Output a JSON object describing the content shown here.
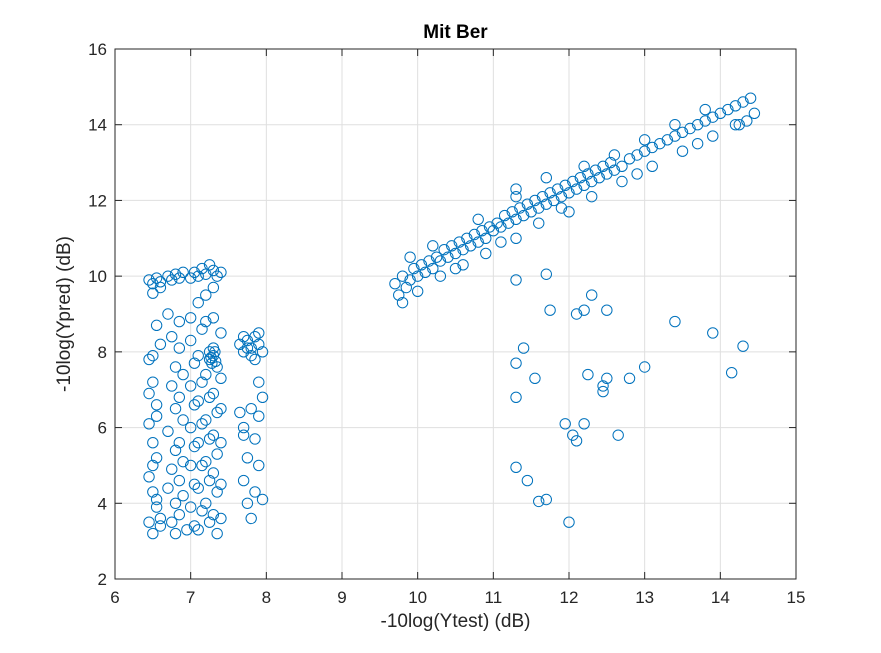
{
  "chart_data": {
    "type": "scatter",
    "title": "Mit Ber",
    "xlabel": "-10log(Ytest) (dB)",
    "ylabel": "-10log(Ypred) (dB)",
    "xlim": [
      6,
      15
    ],
    "ylim": [
      2,
      16
    ],
    "xticks": [
      6,
      7,
      8,
      9,
      10,
      11,
      12,
      13,
      14,
      15
    ],
    "yticks": [
      2,
      4,
      6,
      8,
      10,
      12,
      14,
      16
    ],
    "grid": true,
    "legend": "none",
    "marker": "circle",
    "color": "#0072bd",
    "series": [
      {
        "points": [
          [
            6.45,
            9.9
          ],
          [
            6.5,
            9.8
          ],
          [
            6.55,
            9.95
          ],
          [
            6.6,
            9.85
          ],
          [
            6.7,
            10.0
          ],
          [
            6.75,
            9.9
          ],
          [
            6.8,
            10.05
          ],
          [
            6.85,
            9.95
          ],
          [
            6.9,
            10.1
          ],
          [
            7.0,
            9.95
          ],
          [
            7.05,
            10.1
          ],
          [
            7.1,
            10.0
          ],
          [
            7.15,
            10.2
          ],
          [
            7.2,
            10.05
          ],
          [
            7.25,
            10.3
          ],
          [
            7.3,
            10.15
          ],
          [
            7.35,
            10.0
          ],
          [
            7.4,
            10.1
          ],
          [
            6.5,
            9.55
          ],
          [
            6.6,
            9.7
          ],
          [
            6.45,
            7.8
          ],
          [
            6.5,
            7.2
          ],
          [
            6.55,
            6.6
          ],
          [
            6.45,
            6.1
          ],
          [
            6.5,
            5.6
          ],
          [
            6.55,
            5.2
          ],
          [
            6.45,
            4.7
          ],
          [
            6.5,
            4.3
          ],
          [
            6.55,
            3.9
          ],
          [
            6.45,
            3.5
          ],
          [
            6.5,
            3.2
          ],
          [
            6.6,
            3.4
          ],
          [
            6.55,
            8.7
          ],
          [
            6.6,
            8.2
          ],
          [
            6.5,
            7.9
          ],
          [
            6.45,
            6.9
          ],
          [
            6.55,
            6.3
          ],
          [
            6.5,
            5.0
          ],
          [
            6.55,
            4.1
          ],
          [
            6.6,
            3.6
          ],
          [
            6.7,
            9.0
          ],
          [
            6.75,
            8.4
          ],
          [
            6.8,
            7.6
          ],
          [
            6.75,
            7.1
          ],
          [
            6.8,
            6.5
          ],
          [
            6.7,
            5.9
          ],
          [
            6.8,
            5.4
          ],
          [
            6.75,
            4.9
          ],
          [
            6.7,
            4.4
          ],
          [
            6.8,
            4.0
          ],
          [
            6.75,
            3.5
          ],
          [
            6.8,
            3.2
          ],
          [
            6.85,
            8.8
          ],
          [
            6.85,
            8.1
          ],
          [
            6.9,
            7.4
          ],
          [
            6.85,
            6.8
          ],
          [
            6.9,
            6.2
          ],
          [
            6.85,
            5.6
          ],
          [
            6.9,
            5.1
          ],
          [
            6.85,
            4.6
          ],
          [
            6.9,
            4.2
          ],
          [
            6.85,
            3.7
          ],
          [
            6.95,
            3.3
          ],
          [
            7.0,
            8.9
          ],
          [
            7.0,
            8.3
          ],
          [
            7.05,
            7.7
          ],
          [
            7.0,
            7.1
          ],
          [
            7.05,
            6.6
          ],
          [
            7.0,
            6.0
          ],
          [
            7.05,
            5.5
          ],
          [
            7.0,
            5.0
          ],
          [
            7.05,
            4.5
          ],
          [
            7.0,
            3.9
          ],
          [
            7.05,
            3.4
          ],
          [
            7.1,
            9.3
          ],
          [
            7.15,
            8.6
          ],
          [
            7.1,
            7.9
          ],
          [
            7.15,
            7.2
          ],
          [
            7.1,
            6.7
          ],
          [
            7.15,
            6.1
          ],
          [
            7.1,
            5.6
          ],
          [
            7.15,
            5.0
          ],
          [
            7.1,
            4.4
          ],
          [
            7.15,
            3.8
          ],
          [
            7.1,
            3.3
          ],
          [
            7.2,
            9.5
          ],
          [
            7.2,
            8.8
          ],
          [
            7.25,
            8.0
          ],
          [
            7.2,
            7.4
          ],
          [
            7.25,
            6.8
          ],
          [
            7.2,
            6.2
          ],
          [
            7.25,
            5.7
          ],
          [
            7.2,
            5.1
          ],
          [
            7.25,
            4.6
          ],
          [
            7.2,
            4.0
          ],
          [
            7.25,
            3.5
          ],
          [
            7.3,
            9.7
          ],
          [
            7.3,
            8.9
          ],
          [
            7.35,
            7.6
          ],
          [
            7.3,
            6.9
          ],
          [
            7.35,
            6.4
          ],
          [
            7.3,
            5.8
          ],
          [
            7.35,
            5.3
          ],
          [
            7.3,
            4.8
          ],
          [
            7.35,
            4.3
          ],
          [
            7.3,
            3.7
          ],
          [
            7.35,
            3.2
          ],
          [
            7.4,
            8.5
          ],
          [
            7.4,
            7.3
          ],
          [
            7.4,
            6.5
          ],
          [
            7.4,
            5.6
          ],
          [
            7.4,
            4.5
          ],
          [
            7.4,
            3.6
          ],
          [
            7.25,
            7.8
          ],
          [
            7.3,
            8.1
          ],
          [
            7.3,
            7.9
          ],
          [
            7.28,
            7.7
          ],
          [
            7.32,
            8.0
          ],
          [
            7.27,
            7.85
          ],
          [
            7.33,
            7.75
          ],
          [
            7.65,
            8.2
          ],
          [
            7.7,
            8.0
          ],
          [
            7.75,
            8.3
          ],
          [
            7.8,
            8.1
          ],
          [
            7.85,
            8.4
          ],
          [
            7.9,
            8.2
          ],
          [
            7.95,
            8.0
          ],
          [
            7.7,
            8.4
          ],
          [
            7.8,
            7.9
          ],
          [
            7.9,
            8.5
          ],
          [
            7.85,
            7.8
          ],
          [
            7.75,
            8.1
          ],
          [
            7.65,
            6.4
          ],
          [
            7.7,
            5.8
          ],
          [
            7.75,
            5.2
          ],
          [
            7.7,
            4.6
          ],
          [
            7.75,
            4.0
          ],
          [
            7.8,
            3.6
          ],
          [
            7.85,
            4.3
          ],
          [
            7.9,
            5.0
          ],
          [
            7.85,
            5.7
          ],
          [
            7.9,
            6.3
          ],
          [
            7.95,
            6.8
          ],
          [
            7.9,
            7.2
          ],
          [
            7.95,
            4.1
          ],
          [
            7.8,
            6.5
          ],
          [
            7.7,
            6.0
          ],
          [
            9.7,
            9.8
          ],
          [
            9.75,
            9.5
          ],
          [
            9.8,
            10.0
          ],
          [
            9.85,
            9.7
          ],
          [
            9.9,
            9.9
          ],
          [
            9.95,
            10.2
          ],
          [
            10.0,
            10.0
          ],
          [
            10.05,
            10.3
          ],
          [
            10.1,
            10.1
          ],
          [
            10.15,
            10.4
          ],
          [
            10.2,
            10.2
          ],
          [
            10.25,
            10.5
          ],
          [
            10.3,
            10.4
          ],
          [
            10.35,
            10.7
          ],
          [
            10.4,
            10.5
          ],
          [
            10.45,
            10.8
          ],
          [
            10.5,
            10.6
          ],
          [
            10.55,
            10.9
          ],
          [
            10.6,
            10.7
          ],
          [
            10.65,
            11.0
          ],
          [
            10.7,
            10.8
          ],
          [
            10.75,
            11.1
          ],
          [
            10.8,
            10.9
          ],
          [
            10.85,
            11.2
          ],
          [
            10.9,
            11.0
          ],
          [
            10.95,
            11.3
          ],
          [
            11.0,
            11.2
          ],
          [
            11.05,
            11.4
          ],
          [
            11.1,
            11.3
          ],
          [
            11.15,
            11.6
          ],
          [
            11.2,
            11.4
          ],
          [
            11.25,
            11.7
          ],
          [
            11.3,
            11.5
          ],
          [
            11.35,
            11.8
          ],
          [
            11.4,
            11.6
          ],
          [
            11.45,
            11.9
          ],
          [
            11.5,
            11.7
          ],
          [
            11.55,
            12.0
          ],
          [
            11.6,
            11.8
          ],
          [
            11.65,
            12.1
          ],
          [
            11.7,
            11.9
          ],
          [
            11.75,
            12.2
          ],
          [
            11.8,
            12.0
          ],
          [
            11.85,
            12.3
          ],
          [
            11.9,
            12.1
          ],
          [
            11.95,
            12.4
          ],
          [
            12.0,
            12.2
          ],
          [
            12.05,
            12.5
          ],
          [
            12.1,
            12.3
          ],
          [
            12.15,
            12.6
          ],
          [
            12.2,
            12.4
          ],
          [
            12.25,
            12.7
          ],
          [
            12.3,
            12.5
          ],
          [
            12.35,
            12.8
          ],
          [
            12.4,
            12.6
          ],
          [
            12.45,
            12.9
          ],
          [
            12.5,
            12.7
          ],
          [
            12.55,
            13.0
          ],
          [
            12.6,
            12.8
          ],
          [
            12.7,
            12.9
          ],
          [
            12.8,
            13.1
          ],
          [
            12.9,
            13.2
          ],
          [
            13.0,
            13.3
          ],
          [
            13.1,
            13.4
          ],
          [
            13.2,
            13.5
          ],
          [
            13.3,
            13.6
          ],
          [
            13.4,
            13.7
          ],
          [
            13.5,
            13.8
          ],
          [
            13.6,
            13.9
          ],
          [
            13.7,
            14.0
          ],
          [
            13.8,
            14.1
          ],
          [
            13.9,
            14.2
          ],
          [
            14.0,
            14.3
          ],
          [
            14.1,
            14.4
          ],
          [
            14.2,
            14.5
          ],
          [
            14.3,
            14.6
          ],
          [
            14.4,
            14.7
          ],
          [
            14.45,
            14.3
          ],
          [
            14.35,
            14.1
          ],
          [
            14.25,
            14.0
          ],
          [
            9.8,
            9.3
          ],
          [
            10.0,
            9.6
          ],
          [
            10.3,
            10.0
          ],
          [
            10.6,
            10.3
          ],
          [
            10.9,
            10.6
          ],
          [
            11.3,
            11.0
          ],
          [
            11.6,
            11.4
          ],
          [
            11.9,
            11.8
          ],
          [
            12.3,
            12.1
          ],
          [
            12.7,
            12.5
          ],
          [
            13.1,
            12.9
          ],
          [
            13.5,
            13.3
          ],
          [
            13.9,
            13.7
          ],
          [
            14.2,
            14.0
          ],
          [
            10.2,
            10.8
          ],
          [
            10.8,
            11.5
          ],
          [
            11.3,
            12.1
          ],
          [
            11.7,
            12.6
          ],
          [
            12.2,
            12.9
          ],
          [
            12.6,
            13.2
          ],
          [
            13.0,
            13.6
          ],
          [
            13.4,
            14.0
          ],
          [
            13.8,
            14.4
          ],
          [
            9.9,
            10.5
          ],
          [
            10.5,
            10.2
          ],
          [
            11.1,
            10.9
          ],
          [
            11.3,
            12.3
          ],
          [
            12.0,
            11.7
          ],
          [
            12.9,
            12.7
          ],
          [
            13.7,
            13.5
          ],
          [
            11.7,
            10.05
          ],
          [
            11.3,
            9.9
          ],
          [
            12.3,
            9.5
          ],
          [
            11.75,
            9.1
          ],
          [
            12.1,
            9.0
          ],
          [
            12.2,
            9.1
          ],
          [
            12.5,
            9.1
          ],
          [
            13.4,
            8.8
          ],
          [
            13.9,
            8.5
          ],
          [
            14.3,
            8.15
          ],
          [
            11.4,
            8.1
          ],
          [
            11.3,
            7.7
          ],
          [
            11.55,
            7.3
          ],
          [
            12.25,
            7.4
          ],
          [
            12.45,
            7.1
          ],
          [
            12.5,
            7.3
          ],
          [
            12.8,
            7.3
          ],
          [
            13.0,
            7.6
          ],
          [
            14.15,
            7.45
          ],
          [
            12.45,
            6.95
          ],
          [
            11.3,
            6.8
          ],
          [
            11.95,
            6.1
          ],
          [
            12.2,
            6.1
          ],
          [
            12.05,
            5.8
          ],
          [
            12.1,
            5.65
          ],
          [
            12.65,
            5.8
          ],
          [
            11.3,
            4.95
          ],
          [
            11.45,
            4.6
          ],
          [
            11.6,
            4.05
          ],
          [
            11.7,
            4.1
          ],
          [
            12.0,
            3.5
          ]
        ]
      }
    ]
  }
}
